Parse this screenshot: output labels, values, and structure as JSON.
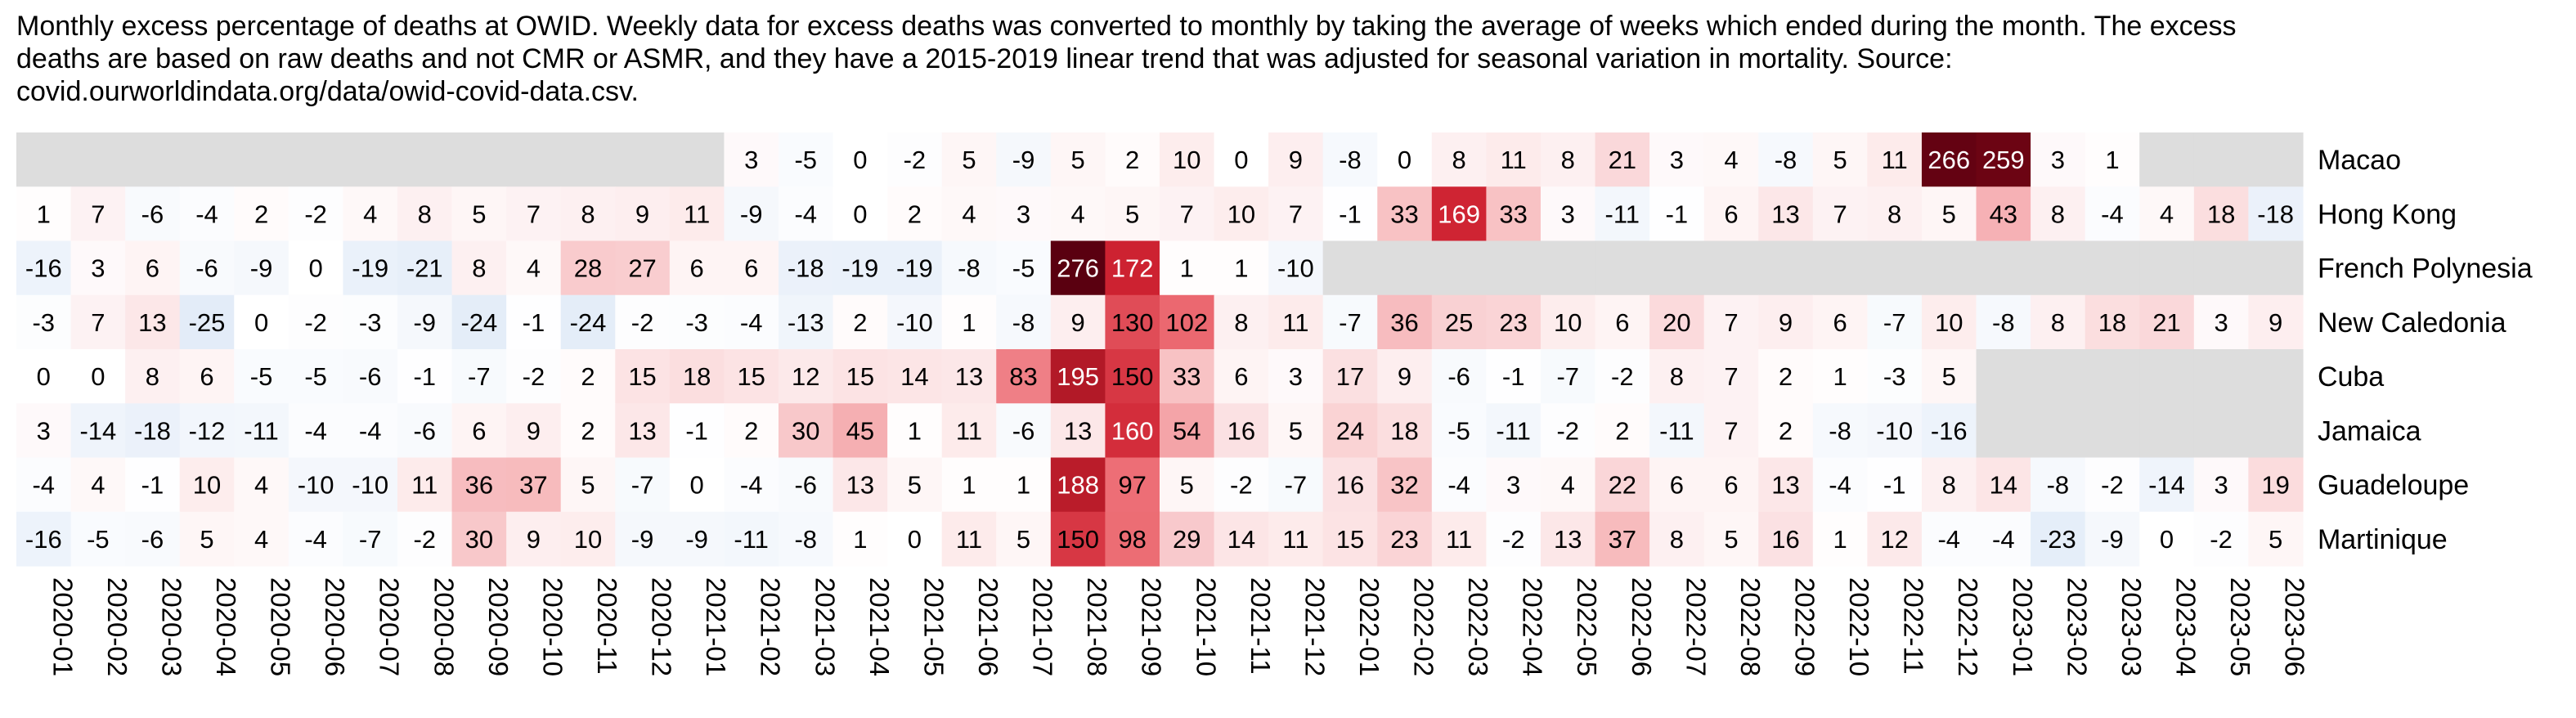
{
  "chart_data": {
    "type": "heatmap",
    "title_lines": [
      "Monthly excess percentage of deaths at OWID. Weekly data for excess deaths was converted to monthly by taking the average of weeks which ended during the month. The excess",
      "deaths are based on raw deaths and not CMR or ASMR, and they have a 2015-2019 linear trend that was adjusted for seasonal variation in mortality. Source:",
      "covid.ourworldindata.org/data/owid-covid-data.csv."
    ],
    "columns": [
      "2020-01",
      "2020-02",
      "2020-03",
      "2020-04",
      "2020-05",
      "2020-06",
      "2020-07",
      "2020-08",
      "2020-09",
      "2020-10",
      "2020-11",
      "2020-12",
      "2021-01",
      "2021-02",
      "2021-03",
      "2021-04",
      "2021-05",
      "2021-06",
      "2021-07",
      "2021-08",
      "2021-09",
      "2021-10",
      "2021-11",
      "2021-12",
      "2022-01",
      "2022-02",
      "2022-03",
      "2022-04",
      "2022-05",
      "2022-06",
      "2022-07",
      "2022-08",
      "2022-09",
      "2022-10",
      "2022-11",
      "2022-12",
      "2023-01",
      "2023-02",
      "2023-03",
      "2023-04",
      "2023-05",
      "2023-06"
    ],
    "rows": [
      {
        "name": "Macao",
        "values": [
          null,
          null,
          null,
          null,
          null,
          null,
          null,
          null,
          null,
          null,
          null,
          null,
          null,
          3,
          -5,
          0,
          -2,
          5,
          -9,
          5,
          2,
          10,
          0,
          9,
          -8,
          0,
          8,
          11,
          8,
          21,
          3,
          4,
          -8,
          5,
          11,
          266,
          259,
          3,
          1,
          null,
          null,
          null
        ]
      },
      {
        "name": "Hong Kong",
        "values": [
          1,
          7,
          -6,
          -4,
          2,
          -2,
          4,
          8,
          5,
          7,
          8,
          9,
          11,
          -9,
          -4,
          0,
          2,
          4,
          3,
          4,
          5,
          7,
          10,
          7,
          -1,
          33,
          169,
          33,
          3,
          -11,
          -1,
          6,
          13,
          7,
          8,
          5,
          43,
          8,
          -4,
          4,
          18,
          -18
        ]
      },
      {
        "name": "French Polynesia",
        "values": [
          -16,
          3,
          6,
          -6,
          -9,
          0,
          -19,
          -21,
          8,
          4,
          28,
          27,
          6,
          6,
          -18,
          -19,
          -19,
          -8,
          -5,
          276,
          172,
          1,
          1,
          -10,
          null,
          null,
          null,
          null,
          null,
          null,
          null,
          null,
          null,
          null,
          null,
          null,
          null,
          null,
          null,
          null,
          null,
          null
        ]
      },
      {
        "name": "New Caledonia",
        "values": [
          -3,
          7,
          13,
          -25,
          0,
          -2,
          -3,
          -9,
          -24,
          -1,
          -24,
          -2,
          -3,
          -4,
          -13,
          2,
          -10,
          1,
          -8,
          9,
          130,
          102,
          8,
          11,
          -7,
          36,
          25,
          23,
          10,
          6,
          20,
          7,
          9,
          6,
          -7,
          10,
          -8,
          8,
          18,
          21,
          3,
          9
        ]
      },
      {
        "name": "Cuba",
        "values": [
          0,
          0,
          8,
          6,
          -5,
          -5,
          -6,
          -1,
          -7,
          -2,
          2,
          15,
          18,
          15,
          12,
          15,
          14,
          13,
          83,
          195,
          150,
          33,
          6,
          3,
          17,
          9,
          -6,
          -1,
          -7,
          -2,
          8,
          7,
          2,
          1,
          -3,
          5,
          null,
          null,
          null,
          null,
          null,
          null
        ]
      },
      {
        "name": "Jamaica",
        "values": [
          3,
          -14,
          -18,
          -12,
          -11,
          -4,
          -4,
          -6,
          6,
          9,
          2,
          13,
          -1,
          2,
          30,
          45,
          1,
          11,
          -6,
          13,
          160,
          54,
          16,
          5,
          24,
          18,
          -5,
          -11,
          -2,
          2,
          -11,
          7,
          2,
          -8,
          -10,
          -16,
          null,
          null,
          null,
          null,
          null,
          null
        ]
      },
      {
        "name": "Guadeloupe",
        "values": [
          -4,
          4,
          -1,
          10,
          4,
          -10,
          -10,
          11,
          36,
          37,
          5,
          -7,
          0,
          -4,
          -6,
          13,
          5,
          1,
          1,
          188,
          97,
          5,
          -2,
          -7,
          16,
          32,
          -4,
          3,
          4,
          22,
          6,
          6,
          13,
          -4,
          -1,
          8,
          14,
          -8,
          -2,
          -14,
          3,
          19
        ]
      },
      {
        "name": "Martinique",
        "values": [
          -16,
          -5,
          -6,
          5,
          4,
          -4,
          -7,
          -2,
          30,
          9,
          10,
          -9,
          -9,
          -11,
          -8,
          1,
          0,
          11,
          5,
          150,
          98,
          29,
          14,
          11,
          15,
          23,
          11,
          -2,
          13,
          37,
          8,
          5,
          16,
          1,
          12,
          -4,
          -4,
          -23,
          -9,
          0,
          -2,
          5
        ]
      }
    ],
    "colormap": "diverging-red-blue",
    "missing_color": "#dddddd",
    "color_low": "#1f4f99",
    "color_mid": "#ffffff",
    "color_high": "#5a0010"
  }
}
